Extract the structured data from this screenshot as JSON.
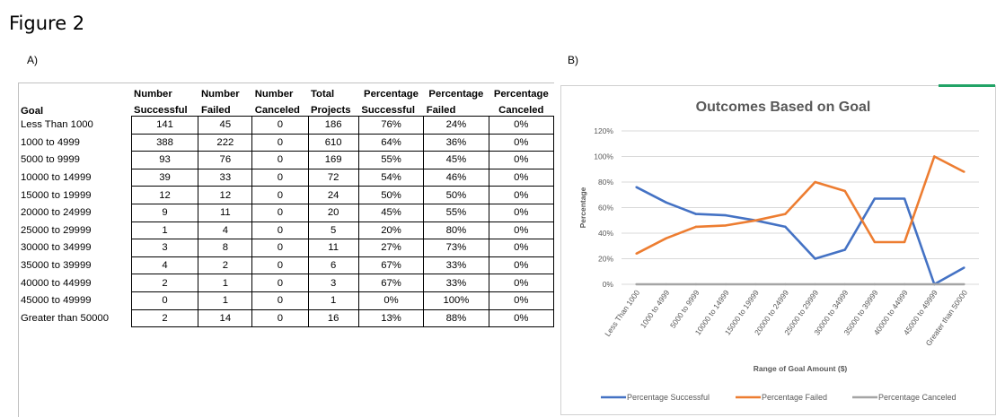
{
  "figure_title": "Figure 2",
  "panel_a_label": "A)",
  "panel_b_label": "B)",
  "table": {
    "header_row1": [
      "",
      "Number",
      "Number",
      "Number",
      "Total",
      "Percentage",
      "Percentage",
      "Percentage"
    ],
    "header_row2": [
      "Goal",
      "Successful",
      "Failed",
      "Canceled",
      "Projects",
      "Successful",
      "Failed",
      "Canceled"
    ],
    "rows": [
      [
        "Less Than 1000",
        "141",
        "45",
        "0",
        "186",
        "76%",
        "24%",
        "0%"
      ],
      [
        "1000 to 4999",
        "388",
        "222",
        "0",
        "610",
        "64%",
        "36%",
        "0%"
      ],
      [
        "5000 to 9999",
        "93",
        "76",
        "0",
        "169",
        "55%",
        "45%",
        "0%"
      ],
      [
        "10000 to 14999",
        "39",
        "33",
        "0",
        "72",
        "54%",
        "46%",
        "0%"
      ],
      [
        "15000 to 19999",
        "12",
        "12",
        "0",
        "24",
        "50%",
        "50%",
        "0%"
      ],
      [
        "20000 to 24999",
        "9",
        "11",
        "0",
        "20",
        "45%",
        "55%",
        "0%"
      ],
      [
        "25000 to 29999",
        "1",
        "4",
        "0",
        "5",
        "20%",
        "80%",
        "0%"
      ],
      [
        "30000 to 34999",
        "3",
        "8",
        "0",
        "11",
        "27%",
        "73%",
        "0%"
      ],
      [
        "35000 to 39999",
        "4",
        "2",
        "0",
        "6",
        "67%",
        "33%",
        "0%"
      ],
      [
        "40000 to 44999",
        "2",
        "1",
        "0",
        "3",
        "67%",
        "33%",
        "0%"
      ],
      [
        "45000 to 49999",
        "0",
        "1",
        "0",
        "1",
        "0%",
        "100%",
        "0%"
      ],
      [
        "Greater than 50000",
        "2",
        "14",
        "0",
        "16",
        "13%",
        "88%",
        "0%"
      ]
    ]
  },
  "chart_data": {
    "type": "line",
    "title": "Outcomes Based on Goal",
    "xlabel": "Range of Goal Amount ($)",
    "ylabel": "Percentage",
    "ylim": [
      0,
      120
    ],
    "yticks": [
      "0%",
      "20%",
      "40%",
      "60%",
      "80%",
      "100%",
      "120%"
    ],
    "grid": true,
    "legend_position": "bottom",
    "categories": [
      "Less Than 1000",
      "1000 to 4999",
      "5000 to 9999",
      "10000 to 14999",
      "15000 to 19999",
      "20000 to 24999",
      "25000 to 29999",
      "30000 to 34999",
      "35000 to 39999",
      "40000 to 44999",
      "45000 to 49999",
      "Greater than 50000"
    ],
    "series": [
      {
        "name": "Percentage Successful",
        "color": "#4472c4",
        "values": [
          76,
          64,
          55,
          54,
          50,
          45,
          20,
          27,
          67,
          67,
          0,
          13
        ]
      },
      {
        "name": "Percentage Failed",
        "color": "#ed7d31",
        "values": [
          24,
          36,
          45,
          46,
          50,
          55,
          80,
          73,
          33,
          33,
          100,
          88
        ]
      },
      {
        "name": "Percentage Canceled",
        "color": "#a5a5a5",
        "values": [
          0,
          0,
          0,
          0,
          0,
          0,
          0,
          0,
          0,
          0,
          0,
          0
        ]
      }
    ]
  }
}
